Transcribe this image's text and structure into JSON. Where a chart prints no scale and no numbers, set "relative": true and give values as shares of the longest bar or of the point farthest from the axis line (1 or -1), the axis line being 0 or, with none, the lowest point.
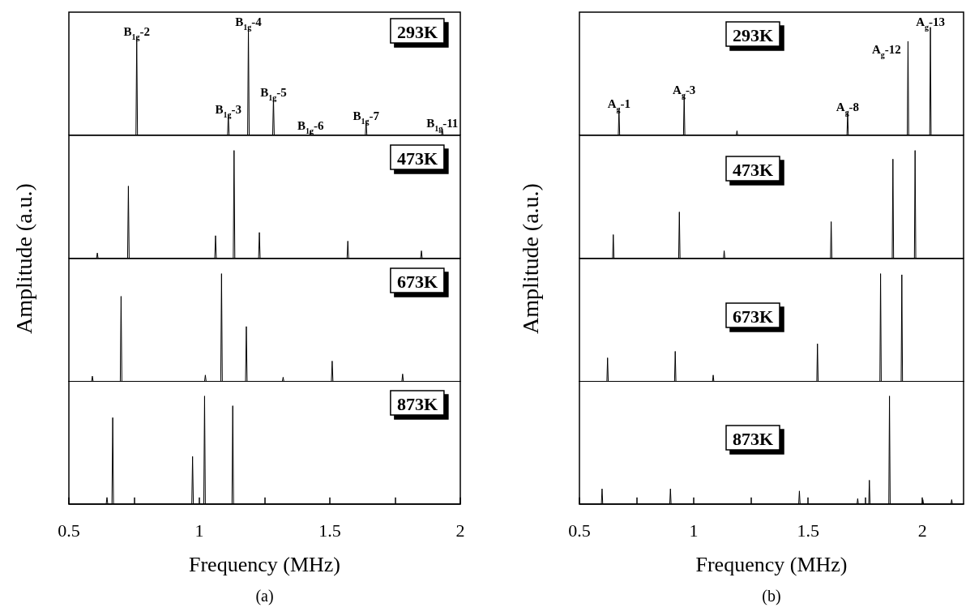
{
  "chart_data": [
    {
      "type": "line",
      "relative": true,
      "xlim": [
        0.5,
        2
      ],
      "tick_labels": false,
      "grid": false,
      "legend": false,
      "marker": "none",
      "line_style": "solid",
      "series": [
        {
          "name": "293K",
          "color": "#000000",
          "x": [
            0.5,
            0.757,
            0.76,
            0.763,
            1.108,
            1.111,
            1.114,
            1.185,
            1.188,
            1.191,
            1.281,
            1.284,
            1.287,
            1.423,
            1.426,
            1.429,
            1.636,
            1.639,
            1.642,
            1.928,
            1.931,
            1.934,
            2
          ],
          "values": [
            0,
            0,
            0.91,
            0,
            0,
            0.19,
            0,
            0,
            1,
            0,
            0,
            0.35,
            0,
            0,
            0.04,
            0,
            0,
            0.13,
            0,
            0,
            0.06,
            0,
            0
          ]
        }
      ],
      "annotations": [
        {
          "text": "B$_{1g}$-2",
          "x": 0.76,
          "y": 0.91
        },
        {
          "text": "B$_{1g}$-3",
          "x": 1.111,
          "y": 0.19
        },
        {
          "text": "B$_{1g}$-4",
          "x": 1.188,
          "y": 1
        },
        {
          "text": "B$_{1g}$-5",
          "x": 1.284,
          "y": 0.35
        },
        {
          "text": "B$_{1g}$-6",
          "x": 1.426,
          "y": 0.04
        },
        {
          "text": "B$_{1g}$-7",
          "x": 1.639,
          "y": 0.13
        },
        {
          "text": "B$_{1g}$-11",
          "x": 1.931,
          "y": 0.06
        }
      ]
    },
    {
      "type": "line",
      "relative": true,
      "xlim": [
        0.5,
        2
      ],
      "tick_labels": false,
      "grid": false,
      "legend": false,
      "marker": "none",
      "line_style": "solid",
      "ylabel": "Amplitude (a.u.)",
      "series": [
        {
          "name": "473K",
          "color": "#000000",
          "x": [
            0.5,
            0.606,
            0.609,
            0.612,
            0.725,
            0.728,
            0.731,
            1.059,
            1.062,
            1.065,
            1.13,
            1.133,
            1.136,
            1.227,
            1.23,
            1.233,
            1.566,
            1.569,
            1.572,
            1.848,
            1.851,
            1.854,
            2
          ],
          "values": [
            0,
            0,
            0.05,
            0,
            0,
            0.67,
            0,
            0,
            0.21,
            0,
            0,
            1,
            0,
            0,
            0.24,
            0,
            0,
            0.16,
            0,
            0,
            0.07,
            0,
            0
          ]
        }
      ]
    },
    {
      "type": "line",
      "relative": true,
      "xlim": [
        0.5,
        2
      ],
      "tick_labels": false,
      "grid": false,
      "legend": false,
      "marker": "none",
      "line_style": "solid",
      "series": [
        {
          "name": "673K",
          "color": "#000000",
          "x": [
            0.5,
            0.587,
            0.59,
            0.593,
            0.697,
            0.7,
            0.703,
            1.02,
            1.023,
            1.026,
            1.082,
            1.085,
            1.088,
            1.177,
            1.18,
            1.183,
            1.318,
            1.321,
            1.324,
            1.506,
            1.509,
            1.512,
            1.776,
            1.779,
            1.782,
            2
          ],
          "values": [
            0,
            0,
            0.05,
            0,
            0,
            0.79,
            0,
            0,
            0.06,
            0,
            0,
            1,
            0,
            0,
            0.51,
            0,
            0,
            0.04,
            0,
            0,
            0.19,
            0,
            0,
            0.07,
            0,
            0
          ]
        }
      ]
    },
    {
      "type": "line",
      "relative": true,
      "xlim": [
        0.5,
        2
      ],
      "xticks": [
        0.5,
        {
          "value": 0.75,
          "label": null
        },
        1,
        {
          "value": 1.25,
          "label": null
        },
        1.5,
        {
          "value": 1.75,
          "label": null
        },
        2
      ],
      "tick_labels": "x",
      "grid": false,
      "legend": false,
      "marker": "none",
      "line_style": "solid",
      "xlabel": "Frequency (MHz)",
      "series": [
        {
          "name": "873K",
          "color": "#000000",
          "x": [
            0.5,
            0.643,
            0.646,
            0.649,
            0.665,
            0.668,
            0.671,
            0.971,
            0.974,
            0.977,
            1.017,
            1.02,
            1.023,
            1.125,
            1.128,
            1.131,
            2
          ],
          "values": [
            0,
            0,
            0.06,
            0,
            0,
            0.8,
            0,
            0,
            0.44,
            0,
            0,
            1,
            0,
            0,
            0.91,
            0,
            0
          ]
        }
      ],
      "annotations": [
        "(a)"
      ]
    },
    {
      "type": "line",
      "relative": true,
      "xlim": [
        0.5,
        2.18
      ],
      "tick_labels": false,
      "grid": false,
      "legend": false,
      "marker": "none",
      "line_style": "solid",
      "series": [
        {
          "name": "293K",
          "color": "#000000",
          "x": [
            0.5,
            0.67,
            0.673,
            0.676,
            0.955,
            0.958,
            0.961,
            1.186,
            1.189,
            1.192,
            1.67,
            1.673,
            1.676,
            1.934,
            1.937,
            1.94,
            2.032,
            2.035,
            2.038,
            2.18
          ],
          "values": [
            0,
            0,
            0.24,
            0,
            0,
            0.37,
            0,
            0,
            0.04,
            0,
            0,
            0.21,
            0,
            0,
            0.87,
            0,
            0,
            1,
            0,
            0
          ]
        }
      ],
      "annotations": [
        {
          "text": "A$_{g}$-1",
          "x": 0.673,
          "y": 0.24
        },
        {
          "text": "A$_{g}$-3",
          "x": 0.958,
          "y": 0.37
        },
        {
          "text": "A$_{g}$-8",
          "x": 1.673,
          "y": 0.21
        },
        {
          "text": "A$_{g}$-12",
          "x": 1.937,
          "y": 0.87
        },
        {
          "text": "A$_{g}$-13",
          "x": 2.035,
          "y": 1
        }
      ]
    },
    {
      "type": "line",
      "relative": true,
      "xlim": [
        0.5,
        2.18
      ],
      "tick_labels": false,
      "grid": false,
      "legend": false,
      "marker": "none",
      "line_style": "solid",
      "ylabel": "Amplitude (a.u.)",
      "series": [
        {
          "name": "473K",
          "color": "#000000",
          "x": [
            0.5,
            0.645,
            0.648,
            0.651,
            0.934,
            0.937,
            0.94,
            1.13,
            1.133,
            1.136,
            1.598,
            1.601,
            1.604,
            1.868,
            1.871,
            1.874,
            1.965,
            1.968,
            1.971,
            2.18
          ],
          "values": [
            0,
            0,
            0.22,
            0,
            0,
            0.43,
            0,
            0,
            0.07,
            0,
            0,
            0.34,
            0,
            0,
            0.92,
            0,
            0,
            1,
            0,
            0
          ]
        }
      ]
    },
    {
      "type": "line",
      "relative": true,
      "xlim": [
        0.5,
        2.18
      ],
      "tick_labels": false,
      "grid": false,
      "legend": false,
      "marker": "none",
      "line_style": "solid",
      "series": [
        {
          "name": "673K",
          "color": "#000000",
          "x": [
            0.5,
            0.62,
            0.623,
            0.626,
            0.916,
            0.919,
            0.922,
            1.082,
            1.085,
            1.088,
            1.538,
            1.541,
            1.544,
            1.814,
            1.817,
            1.82,
            1.907,
            1.91,
            1.913,
            2.18
          ],
          "values": [
            0,
            0,
            0.22,
            0,
            0,
            0.28,
            0,
            0,
            0.06,
            0,
            0,
            0.35,
            0,
            0,
            1,
            0,
            0,
            0.99,
            0,
            0
          ]
        }
      ]
    },
    {
      "type": "line",
      "relative": true,
      "xlim": [
        0.5,
        2.18
      ],
      "xticks": [
        0.5,
        {
          "value": 0.75,
          "label": null
        },
        1,
        {
          "value": 1.25,
          "label": null
        },
        1.5,
        {
          "value": 1.75,
          "label": null
        },
        2
      ],
      "tick_labels": "x",
      "grid": false,
      "legend": false,
      "marker": "none",
      "line_style": "solid",
      "xlabel": "Frequency (MHz)",
      "series": [
        {
          "name": "873K",
          "color": "#000000",
          "x": [
            0.5,
            0.596,
            0.599,
            0.602,
            0.895,
            0.898,
            0.901,
            1.459,
            1.462,
            1.465,
            1.714,
            1.717,
            1.72,
            1.765,
            1.768,
            1.771,
            1.853,
            1.856,
            1.859,
            1.999,
            2.002,
            2.005,
            2.125,
            2.128,
            2.131,
            2.18
          ],
          "values": [
            0,
            0,
            0.14,
            0,
            0,
            0.14,
            0,
            0,
            0.12,
            0,
            0,
            0.05,
            0,
            0,
            0.22,
            0,
            0,
            1,
            0,
            0,
            0.04,
            0,
            0,
            0.04,
            0,
            0
          ]
        }
      ],
      "annotations": [
        "(b)"
      ]
    }
  ]
}
